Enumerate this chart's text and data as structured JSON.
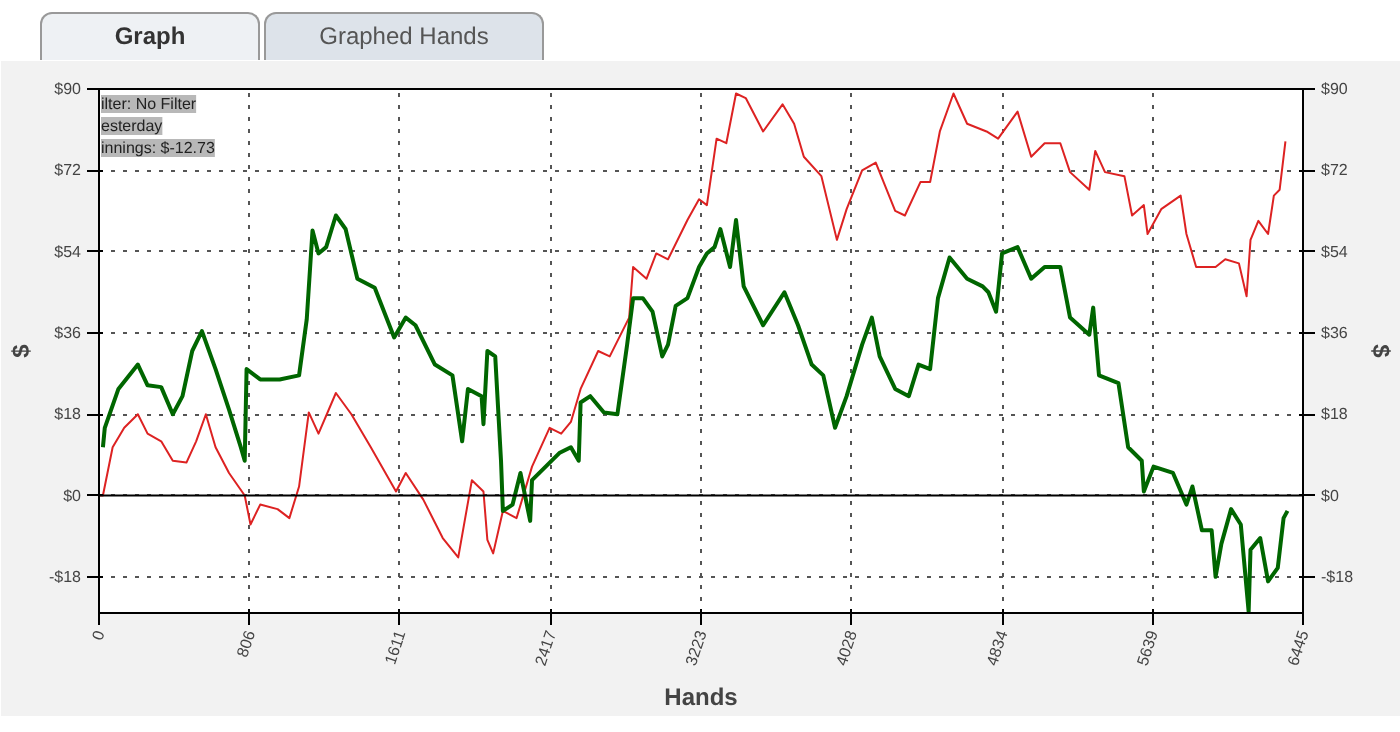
{
  "chart_data": {
    "type": "line",
    "xlabel": "Hands",
    "ylabel": "$",
    "y2label": "$",
    "annotations": [
      "Graph",
      "Graphed Hands",
      "ilter: No Filter",
      "esterday",
      "innings: $-12.73"
    ],
    "xlim": [
      0,
      6445
    ],
    "xticks": [
      {
        "value": 0,
        "label": "0"
      },
      {
        "value": 806,
        "label": "806"
      },
      {
        "value": 1611,
        "label": "1611"
      },
      {
        "value": 2417,
        "label": "2417"
      },
      {
        "value": 3223,
        "label": "3223"
      },
      {
        "value": 4028,
        "label": "4028"
      },
      {
        "value": 4834,
        "label": "4834"
      },
      {
        "value": 5639,
        "label": "5639"
      },
      {
        "value": 6445,
        "label": "6445"
      }
    ],
    "ylim": [
      -26,
      90
    ],
    "yticks": [
      {
        "value": -18,
        "label": "-$18"
      },
      {
        "value": 0,
        "label": "$0"
      },
      {
        "value": 18,
        "label": "$18"
      },
      {
        "value": 36,
        "label": "$36"
      },
      {
        "value": 54,
        "label": "$54"
      },
      {
        "value": 72,
        "label": "$72"
      },
      {
        "value": 90,
        "label": "$90"
      }
    ],
    "y2lim": [
      -26,
      90
    ],
    "y2ticks": [
      {
        "value": -18,
        "label": "-$18"
      },
      {
        "value": 0,
        "label": "$0"
      },
      {
        "value": 18,
        "label": "$18"
      },
      {
        "value": 36,
        "label": "$36"
      },
      {
        "value": 54,
        "label": "$54"
      },
      {
        "value": 72,
        "label": "$72"
      },
      {
        "value": 90,
        "label": "$90"
      }
    ],
    "grid": true,
    "line_style": "solid",
    "marker": "none",
    "ref_lines": [
      {
        "axis": "y",
        "value": 0,
        "label": null,
        "color": "#000000"
      }
    ],
    "series": [
      {
        "color": "#dd2222",
        "x": [
          0,
          21,
          73,
          135,
          208,
          260,
          333,
          395,
          468,
          520,
          572,
          624,
          696,
          780,
          811,
          863,
          956,
          1019,
          1071,
          1123,
          1175,
          1268,
          1351,
          1455,
          1590,
          1642,
          1736,
          1840,
          1923,
          1996,
          2058,
          2079,
          2110,
          2162,
          2235,
          2318,
          2412,
          2474,
          2526,
          2578,
          2672,
          2734,
          2838,
          2859,
          2931,
          2983,
          3046,
          3150,
          3212,
          3254,
          3306,
          3358,
          3410,
          3462,
          3555,
          3659,
          3721,
          3773,
          3867,
          3950,
          4002,
          4085,
          4158,
          4262,
          4314,
          4397,
          4449,
          4501,
          4574,
          4647,
          4751,
          4813,
          4917,
          4990,
          5062,
          5146,
          5198,
          5301,
          5333,
          5385,
          5489,
          5530,
          5593,
          5613,
          5686,
          5790,
          5821,
          5873,
          5977,
          6029,
          6102,
          6143,
          6164,
          6206,
          6258,
          6289,
          6320,
          6351
        ],
        "values": [
          0,
          0,
          10.7,
          15,
          18,
          13.7,
          12,
          7.7,
          7.3,
          12,
          18,
          10.7,
          5,
          0,
          -6.4,
          -2,
          -3,
          -5,
          2,
          18.4,
          13.7,
          22.7,
          18,
          10.7,
          0.9,
          5,
          -0.9,
          -9.4,
          -13.7,
          3.4,
          0.9,
          -9.8,
          -12.8,
          -3.4,
          -5,
          6.4,
          15,
          13.7,
          16.3,
          23.6,
          32,
          30.8,
          39.4,
          50.6,
          48,
          53.6,
          52.3,
          61,
          65.6,
          64.3,
          79,
          78,
          89,
          88,
          80.6,
          86.6,
          82.3,
          75,
          70.7,
          56.6,
          63.4,
          72,
          73.7,
          63,
          62,
          69.4,
          69.4,
          80.6,
          89,
          82.3,
          80.6,
          79,
          85,
          75,
          78,
          78,
          71.6,
          67.7,
          76.3,
          71.6,
          70.7,
          62,
          64.3,
          57.9,
          63.4,
          66.4,
          57.9,
          50.6,
          50.6,
          52.3,
          51.4,
          44.1,
          56.6,
          60.8,
          57.9,
          66.4,
          67.7,
          78.4
        ]
      },
      {
        "color": "#006600",
        "x": [
          21,
          31,
          104,
          208,
          260,
          333,
          395,
          447,
          499,
          551,
          624,
          696,
          759,
          780,
          790,
          863,
          967,
          1071,
          1112,
          1143,
          1175,
          1216,
          1268,
          1320,
          1383,
          1476,
          1580,
          1642,
          1694,
          1798,
          1892,
          1944,
          1975,
          2048,
          2058,
          2079,
          2121,
          2152,
          2162,
          2214,
          2256,
          2308,
          2318,
          2391,
          2464,
          2526,
          2568,
          2578,
          2630,
          2703,
          2775,
          2827,
          2859,
          2911,
          2963,
          3015,
          3046,
          3087,
          3150,
          3212,
          3254,
          3295,
          3326,
          3378,
          3410,
          3451,
          3555,
          3669,
          3742,
          3815,
          3877,
          3940,
          4002,
          4085,
          4137,
          4179,
          4262,
          4335,
          4387,
          4449,
          4491,
          4553,
          4647,
          4730,
          4761,
          4802,
          4834,
          4917,
          4990,
          5062,
          5146,
          5198,
          5301,
          5322,
          5353,
          5457,
          5509,
          5582,
          5593,
          5645,
          5749,
          5821,
          5853,
          5904,
          5956,
          5977,
          6008,
          6060,
          6112,
          6154,
          6164,
          6216,
          6258,
          6310,
          6341,
          6362
        ],
        "values": [
          10.7,
          15,
          23.6,
          29,
          24.4,
          24,
          18,
          22,
          32,
          36.4,
          28,
          19,
          10.7,
          7.7,
          28,
          25.7,
          25.7,
          26.6,
          39,
          58.7,
          53.6,
          55,
          62,
          59,
          48,
          46,
          35,
          39.4,
          37.7,
          29,
          26.6,
          12,
          23.6,
          22,
          15.8,
          32,
          30.8,
          7.7,
          -3.4,
          -2,
          5,
          -5.6,
          3.4,
          6.4,
          9.4,
          10.7,
          7.7,
          20.6,
          22,
          18.4,
          18,
          33.4,
          43.7,
          43.7,
          40.7,
          30.8,
          33.4,
          42,
          43.7,
          50.6,
          53.6,
          55,
          59,
          50.6,
          61,
          46.3,
          37.7,
          45,
          37.7,
          29,
          26.6,
          15,
          22,
          33.4,
          39.4,
          30.8,
          23.6,
          22,
          29,
          28,
          43.7,
          52.7,
          48,
          46.3,
          45,
          40.7,
          53.6,
          55,
          48,
          50.6,
          50.6,
          39.4,
          35.6,
          41.6,
          26.6,
          24.9,
          10.7,
          7.7,
          0.9,
          6.4,
          5,
          -2,
          2,
          -7.7,
          -7.7,
          -18,
          -10.7,
          -3,
          -6.4,
          -25.7,
          -12,
          -9.4,
          -19,
          -16,
          -5,
          -3.4
        ]
      }
    ]
  }
}
